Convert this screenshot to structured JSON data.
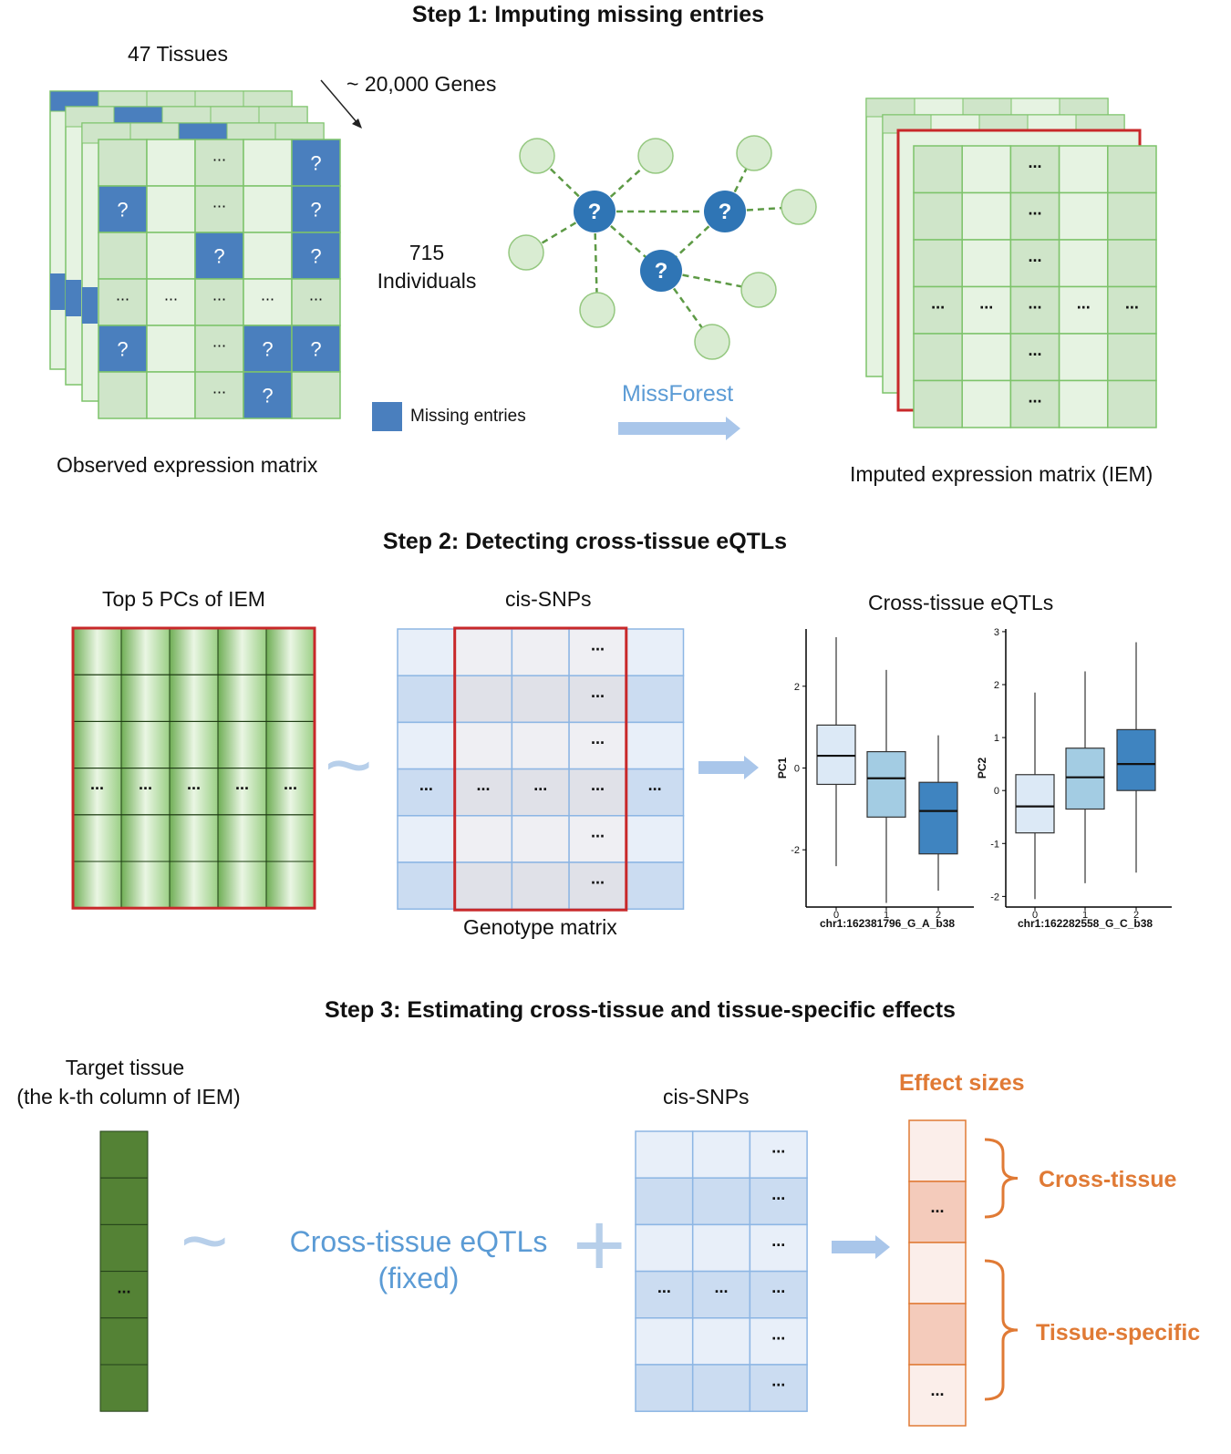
{
  "step1": {
    "title": "Step 1: Imputing missing entries",
    "tissues_label": "47 Tissues",
    "genes_label": "~ 20,000 Genes",
    "individuals_count": "715",
    "individuals_label": "Individuals",
    "observed_caption": "Observed expression matrix",
    "imputed_caption": "Imputed expression matrix (IEM)",
    "legend_label": "Missing entries",
    "method_label": "MissForest",
    "question_mark": "?",
    "ellipsis": "..."
  },
  "step2": {
    "title": "Step 2: Detecting cross-tissue eQTLs",
    "pcs_label": "Top 5 PCs of IEM",
    "snps_label": "cis-SNPs",
    "genotype_caption": "Genotype matrix",
    "eqtl_label": "Cross-tissue eQTLs",
    "tilde": "~",
    "ellipsis": "..."
  },
  "step3": {
    "title": "Step 3: Estimating cross-tissue and tissue-specific effects",
    "target_line1": "Target tissue",
    "target_line2": "(the k-th column of IEM)",
    "snps_label": "cis-SNPs",
    "effect_sizes_label": "Effect sizes",
    "cross_tissue_label": "Cross-tissue",
    "tissue_specific_label": "Tissue-specific",
    "fixed_line1": "Cross-tissue eQTLs",
    "fixed_line2": "(fixed)",
    "tilde": "~",
    "plus": "+",
    "ellipsis": "..."
  },
  "colors": {
    "missing_blue": "#4a7fbe",
    "green_light": "#e6f3e2",
    "green_mid": "#cfe5c9",
    "green_border": "#7dc36a",
    "red_outline": "#c8282a",
    "snp_light": "#e8eff9",
    "snp_mid": "#cbdcf1",
    "snp_border": "#8db6e4",
    "arrow_blue": "#a9c6ea",
    "text_blue": "#5b9bd5",
    "orange": "#e07a35",
    "dark_green": "#548235"
  },
  "chart_data": [
    {
      "type": "box",
      "ylabel": "PC1",
      "xlabel": "chr1:162381796_G_A_b38",
      "categories": [
        "0",
        "1",
        "2"
      ],
      "yticks": [
        2,
        0,
        -2
      ],
      "ylim": [
        -3.4,
        3.4
      ],
      "boxes": [
        {
          "min": -2.4,
          "q1": -0.4,
          "median": 0.3,
          "q3": 1.05,
          "max": 3.2
        },
        {
          "min": -3.3,
          "q1": -1.2,
          "median": -0.25,
          "q3": 0.4,
          "max": 2.4
        },
        {
          "min": -3.0,
          "q1": -2.1,
          "median": -1.05,
          "q3": -0.35,
          "max": 0.8
        }
      ],
      "box_colors": [
        "#dce9f6",
        "#a3cce3",
        "#3f84c0"
      ]
    },
    {
      "type": "box",
      "ylabel": "PC2",
      "xlabel": "chr1:162282558_G_C_b38",
      "categories": [
        "0",
        "1",
        "2"
      ],
      "yticks": [
        3,
        2,
        1,
        0,
        -1,
        -2
      ],
      "ylim": [
        -2.2,
        3.05
      ],
      "boxes": [
        {
          "min": -2.05,
          "q1": -0.8,
          "median": -0.3,
          "q3": 0.3,
          "max": 1.85
        },
        {
          "min": -1.75,
          "q1": -0.35,
          "median": 0.25,
          "q3": 0.8,
          "max": 2.25
        },
        {
          "min": -1.55,
          "q1": 0.0,
          "median": 0.5,
          "q3": 1.15,
          "max": 2.8
        }
      ],
      "box_colors": [
        "#dce9f6",
        "#a3cce3",
        "#3f84c0"
      ]
    }
  ]
}
